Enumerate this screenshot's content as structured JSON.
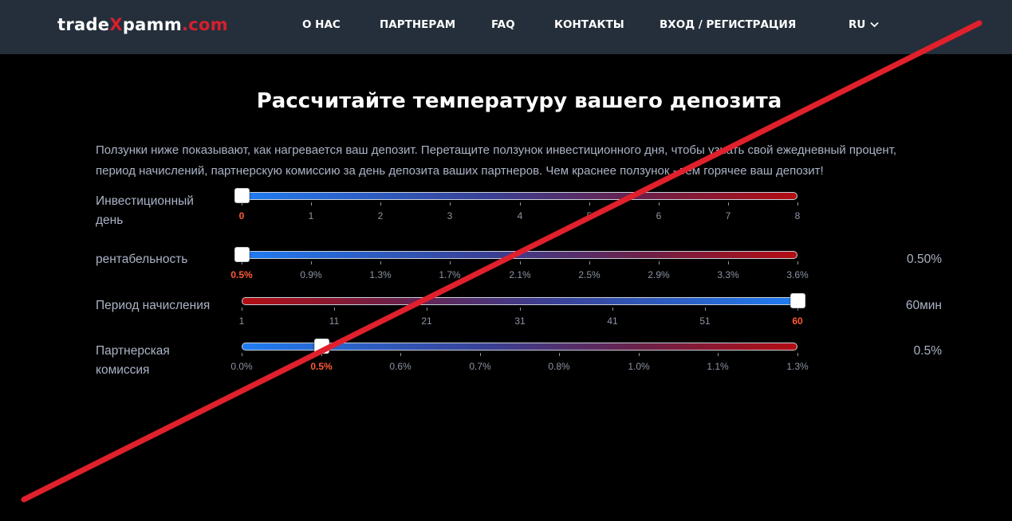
{
  "header": {
    "logo": {
      "part1": "trade",
      "part2": "X",
      "part3": "pamm",
      "part4": ".com"
    },
    "nav": [
      "О НАС",
      "ПАРТНЕРАМ",
      "FAQ",
      "КОНТАКТЫ",
      "ВХОД / РЕГИСТРАЦИЯ"
    ],
    "language": "RU"
  },
  "title": "Рассчитайте температуру вашего депозита",
  "intro": "Ползунки ниже показывают, как нагревается ваш депозит. Перетащите ползунок инвестиционного дня, чтобы узнать свой ежедневный процент, период начислений, партнерскую комиссию за день депозита ваших партнеров. Чем краснее ползунок - тем горячее ваш депозит!",
  "sliders": [
    {
      "label": "Инвестиционный день",
      "value_text": "",
      "ticks": [
        "0",
        "1",
        "2",
        "3",
        "4",
        "5",
        "6",
        "7",
        "8"
      ],
      "active_index": 0,
      "position": 0
    },
    {
      "label": "рентабельность",
      "value_text": "0.50%",
      "ticks": [
        "0.5%",
        "0.9%",
        "1.3%",
        "1.7%",
        "2.1%",
        "2.5%",
        "2.9%",
        "3.3%",
        "3.6%"
      ],
      "active_index": 0,
      "position": 0
    },
    {
      "label": "Период начисления",
      "value_text": "60мин",
      "ticks": [
        "1",
        "11",
        "21",
        "31",
        "41",
        "51",
        "60"
      ],
      "active_index": 6,
      "position": 1
    },
    {
      "label": "Партнерская комиссия",
      "value_text": "0.5%",
      "ticks": [
        "0.0%",
        "0.5%",
        "0.6%",
        "0.7%",
        "0.8%",
        "1.0%",
        "1.1%",
        "1.3%"
      ],
      "active_index": 1,
      "position": 0.143
    }
  ],
  "colors": {
    "header_bg": "#252f3b",
    "accent_red": "#d4202e",
    "active_tick": "#ff5a36",
    "muted_text": "#aab3c6",
    "strike_line": "#e0202c"
  },
  "icons": {
    "lang_chevron": "chevron-down-icon"
  }
}
